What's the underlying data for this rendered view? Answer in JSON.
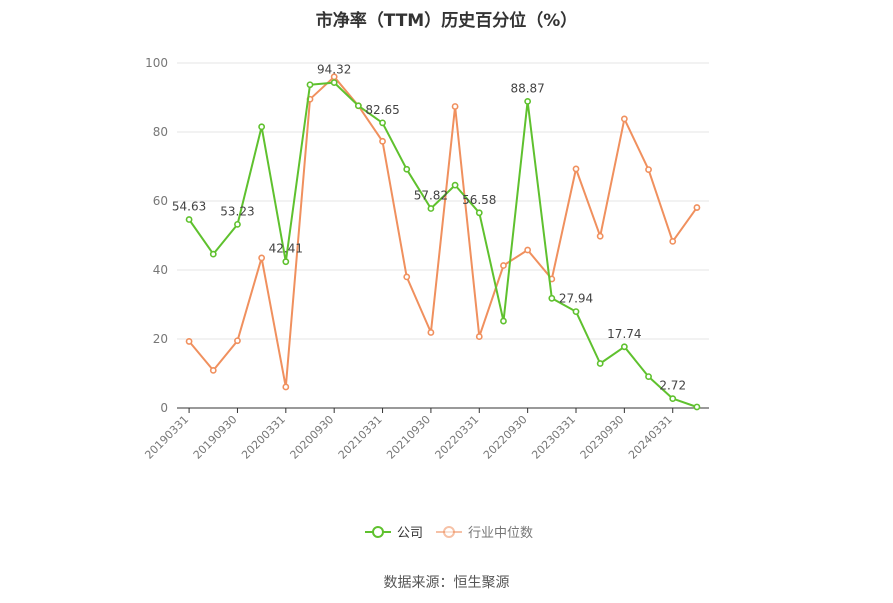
{
  "chart_data": {
    "type": "line",
    "title": "市净率（TTM）历史百分位（%）",
    "xlabel": "",
    "ylabel": "",
    "ylim": [
      0,
      100
    ],
    "yticks": [
      0,
      20,
      40,
      60,
      80,
      100
    ],
    "x": [
      "20190331",
      "20190630",
      "20190930",
      "20191231",
      "20200331",
      "20200630",
      "20200930",
      "20201231",
      "20210331",
      "20210630",
      "20210930",
      "20211231",
      "20220331",
      "20220630",
      "20220930",
      "20221231",
      "20230331",
      "20230630",
      "20230930",
      "20231231",
      "20240331",
      "20240630"
    ],
    "xtick_labels": [
      "20190331",
      "20190930",
      "20200331",
      "20200930",
      "20210331",
      "20210930",
      "20220331",
      "20220930",
      "20230331",
      "20230930",
      "20240331"
    ],
    "grid": true,
    "legend_position": "bottom",
    "series": [
      {
        "name": "公司",
        "color": "#5fc12e",
        "values": [
          54.63,
          44.6,
          53.23,
          81.5,
          42.41,
          93.7,
          94.32,
          87.6,
          82.65,
          69.2,
          57.82,
          64.6,
          56.58,
          25.2,
          88.87,
          31.8,
          27.94,
          12.9,
          17.74,
          9.1,
          2.72,
          0.3
        ],
        "labels": {
          "0": "54.63",
          "2": "53.23",
          "4": "42.41",
          "6": "94.32",
          "8": "82.65",
          "10": "57.82",
          "12": "56.58",
          "14": "88.87",
          "16": "27.94",
          "18": "17.74",
          "20": "2.72"
        }
      },
      {
        "name": "行业中位数",
        "color": "#f0905e",
        "values": [
          19.3,
          10.9,
          19.5,
          43.5,
          6.1,
          89.5,
          96.0,
          87.6,
          77.3,
          38.0,
          21.9,
          87.4,
          20.7,
          41.3,
          45.8,
          37.4,
          69.3,
          49.8,
          83.8,
          69.1,
          48.3,
          58.1
        ]
      }
    ]
  },
  "source_text": "数据来源：恒生聚源"
}
